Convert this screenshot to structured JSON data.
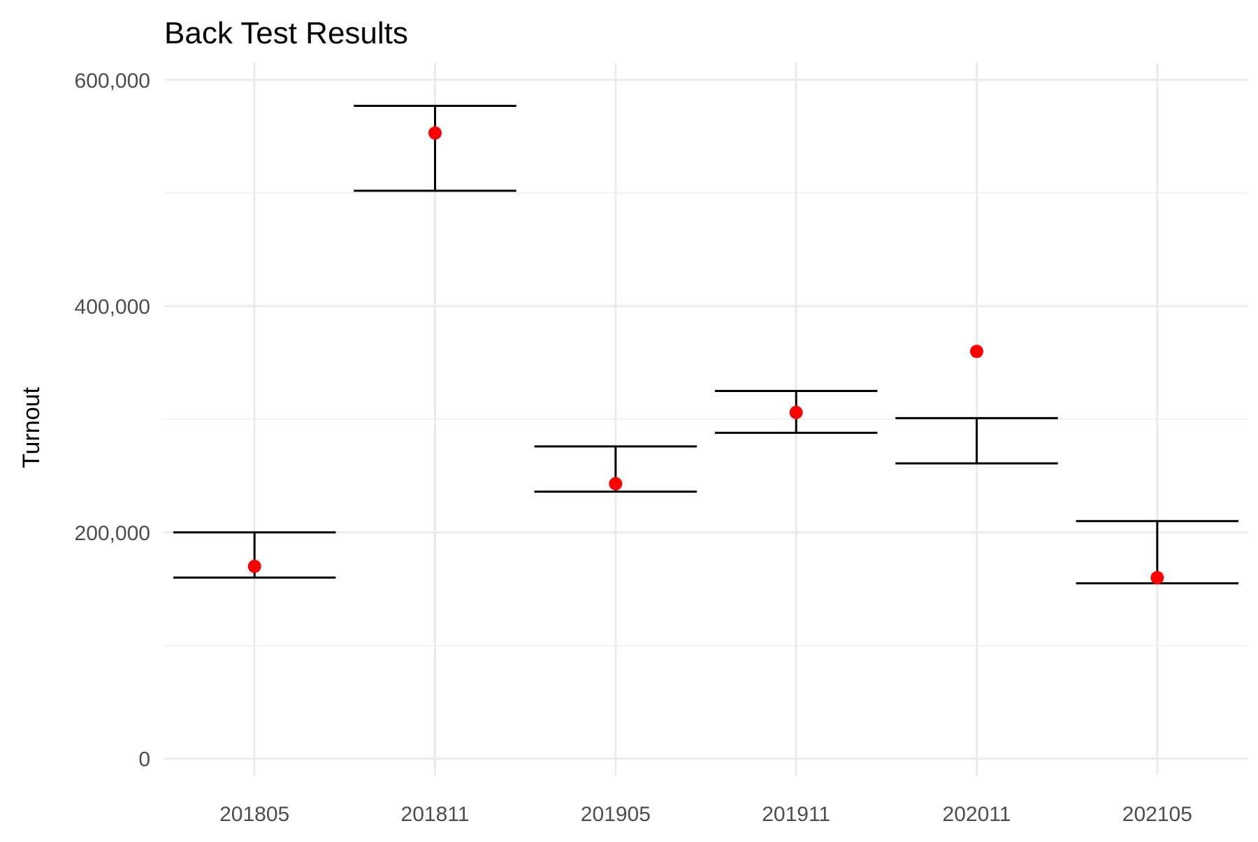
{
  "chart_data": {
    "type": "scatter",
    "title": "Back Test Results",
    "subtitle": "",
    "xlabel": "",
    "ylabel": "Turnout",
    "x_type": "categorical",
    "categories": [
      "201805",
      "201811",
      "201905",
      "201911",
      "202011",
      "202105"
    ],
    "ylim": [
      -15000,
      615000
    ],
    "yticks": [
      0,
      200000,
      400000,
      600000
    ],
    "ytick_labels": [
      "0",
      "200,000",
      "400,000",
      "600,000"
    ],
    "grid": true,
    "legend": "none",
    "series": [
      {
        "kind": "errorbar",
        "lower": [
          160000,
          502000,
          236000,
          288000,
          261000,
          155000
        ],
        "upper": [
          200000,
          577000,
          276000,
          325000,
          301000,
          210000
        ]
      },
      {
        "kind": "points",
        "color": "#ff0000",
        "values": [
          170000,
          553000,
          243000,
          306000,
          360000,
          160000
        ]
      }
    ]
  }
}
